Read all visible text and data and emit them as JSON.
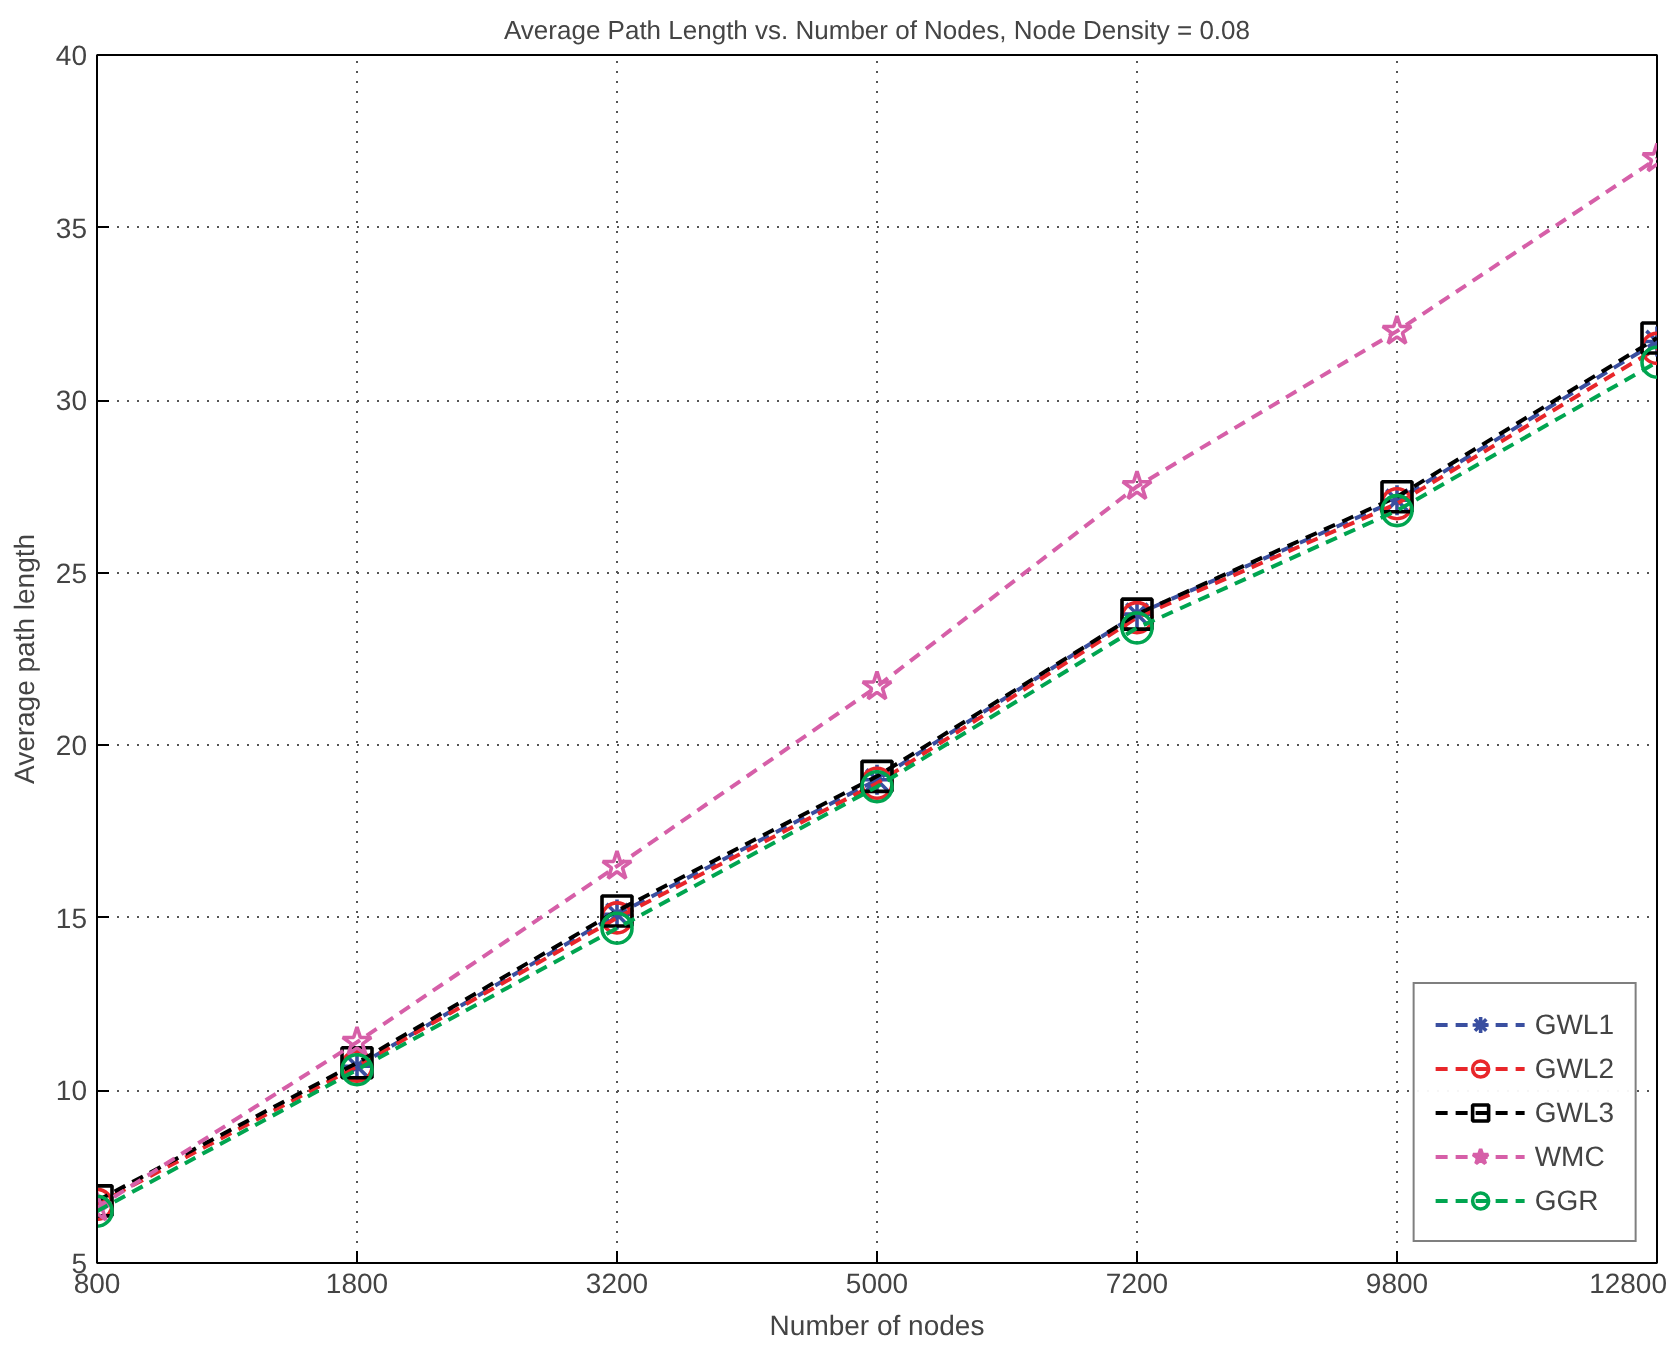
{
  "chart_data": {
    "type": "line",
    "title": "Average Path Length vs. Number of Nodes, Node Density = 0.08",
    "xlabel": "Number of nodes",
    "ylabel": "Average path length",
    "categories": [
      "800",
      "1800",
      "3200",
      "5000",
      "7200",
      "9800",
      "12800"
    ],
    "ylim": [
      5,
      40
    ],
    "yticks": [
      5,
      10,
      15,
      20,
      25,
      30,
      35,
      40
    ],
    "grid": true,
    "legend": "bottom right",
    "line_style": "dashed",
    "series": [
      {
        "name": "GWL1",
        "color": "#3a4fa0",
        "marker": "cross",
        "values": [
          null,
          10.7,
          15.1,
          19.0,
          23.8,
          27.1,
          31.7
        ]
      },
      {
        "name": "GWL2",
        "color": "#e8262a",
        "marker": "circle",
        "values": [
          6.7,
          10.7,
          15.0,
          18.9,
          23.7,
          27.0,
          31.5
        ]
      },
      {
        "name": "GWL3",
        "color": "#000000",
        "marker": "square",
        "values": [
          6.8,
          10.8,
          15.2,
          19.1,
          23.8,
          27.2,
          31.8
        ]
      },
      {
        "name": "WMC",
        "color": "#d65fa8",
        "marker": "star",
        "values": [
          6.6,
          11.4,
          16.5,
          21.7,
          27.5,
          32.0,
          37.0
        ]
      },
      {
        "name": "GGR",
        "color": "#00a550",
        "marker": "circle",
        "values": [
          6.5,
          10.6,
          14.7,
          18.8,
          23.4,
          26.8,
          31.1
        ]
      }
    ]
  }
}
